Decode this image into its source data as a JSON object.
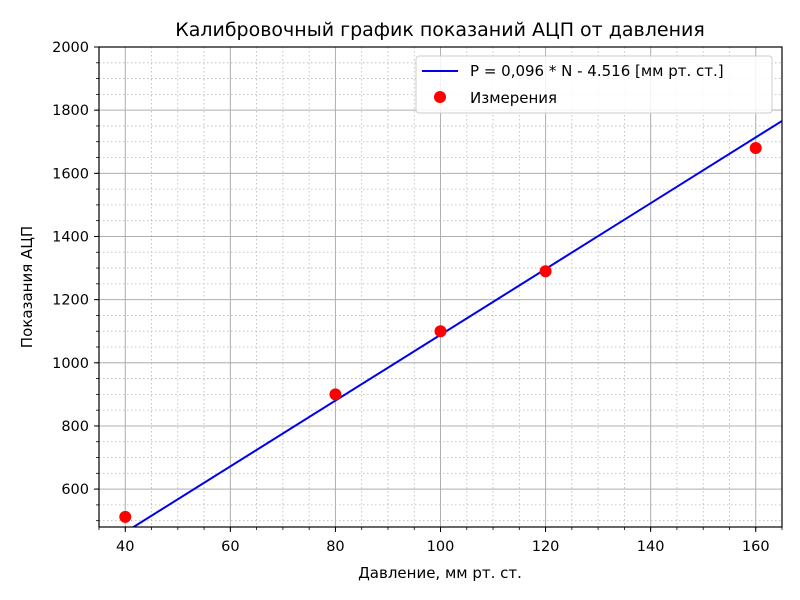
{
  "chart_data": {
    "type": "scatter",
    "title": "Калибровочный график показаний АЦП от давления",
    "xlabel": "Давление, мм рт. ст.",
    "ylabel": "Показания АЦП",
    "xlim": [
      35,
      165
    ],
    "ylim": [
      480,
      2000
    ],
    "x_ticks": [
      40,
      60,
      80,
      100,
      120,
      140,
      160
    ],
    "y_ticks": [
      600,
      800,
      1000,
      1200,
      1400,
      1600,
      1800,
      2000
    ],
    "x_minor_step": 5,
    "y_minor_step": 50,
    "grid": true,
    "legend": "upper-right",
    "series": [
      {
        "name": "P = 0,096 * N - 4.516 [мм рт. ст.]",
        "kind": "line",
        "color": "#0000ee",
        "x": [
          41.0,
          165.0
        ],
        "y": [
          474.1,
          1765.8
        ]
      },
      {
        "name": "Измерения",
        "kind": "scatter",
        "color": "#ff0000",
        "x": [
          40,
          80,
          100,
          120,
          160
        ],
        "y": [
          512,
          900,
          1100,
          1290,
          1680
        ]
      }
    ]
  }
}
